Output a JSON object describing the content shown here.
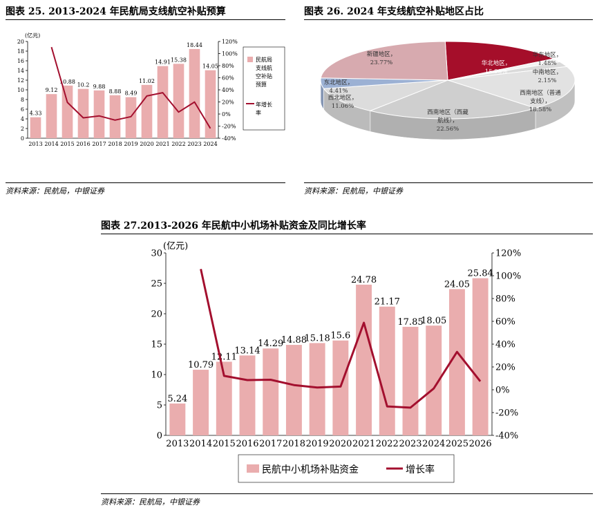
{
  "charts": {
    "fig25": {
      "title": "图表 25. 2013-2024 年民航局支线航空补贴预算",
      "source": "资料来源：民航局，中银证券"
    },
    "fig26": {
      "title": "图表 26. 2024 年支线航空补贴地区占比",
      "source": "资料来源：民航局，中银证券"
    },
    "fig27": {
      "title": "图表 27.2013-2026 年民航中小机场补贴资金及同比增长率",
      "source": "资料来源：民航局，中银证券"
    }
  },
  "chart_data": [
    {
      "type": "bar",
      "title": "图表 25. 2013-2024 年民航局支线航空补贴预算",
      "ylabel": "(亿元)",
      "categories": [
        "2013",
        "2014",
        "2015",
        "2016",
        "2017",
        "2018",
        "2019",
        "2020",
        "2021",
        "2022",
        "2023",
        "2024"
      ],
      "series": [
        {
          "name": "民航局支线航空补贴预算",
          "type": "bar",
          "axis": "left",
          "color": "#eaadae",
          "values": [
            4.33,
            9.12,
            10.88,
            10.2,
            9.88,
            8.88,
            8.49,
            11.02,
            14.91,
            15.38,
            18.44,
            14.05
          ],
          "labels": [
            "4.33",
            "9.12",
            "10.88",
            "10.2",
            "9.88",
            "8.88",
            "8.49",
            "11.02",
            "14.91",
            "15.38",
            "18.44",
            "14.05"
          ]
        },
        {
          "name": "年增长率",
          "type": "line",
          "axis": "right",
          "color": "#a30f2e",
          "values": [
            null,
            110.6,
            19.3,
            -6.3,
            -3.1,
            -10.1,
            -4.4,
            29.8,
            35.3,
            3.2,
            19.9,
            -23.8
          ]
        }
      ],
      "ylim": [
        0,
        20
      ],
      "yticks": [
        "0",
        "2",
        "4",
        "6",
        "8",
        "10",
        "12",
        "14",
        "16",
        "18",
        "20"
      ],
      "y2lim": [
        -40,
        120
      ],
      "y2ticks": [
        "-40%",
        "-20%",
        "0%",
        "20%",
        "40%",
        "60%",
        "80%",
        "100%",
        "120%"
      ],
      "legend": [
        "民航局支线航空补贴预算",
        "年增长率"
      ],
      "legend_placement": "right",
      "grid": false
    },
    {
      "type": "pie",
      "style": "3d",
      "title": "图表 26. 2024 年支线航空补贴地区占比",
      "slices": [
        {
          "name": "华北地区",
          "value": 15.98,
          "color": "#a50e2a",
          "label": "华北地区，",
          "pct": "15.98%"
        },
        {
          "name": "华东地区",
          "value": 1.48,
          "color": "#f3f3f3",
          "label": "华东地区，",
          "pct": "1.48%"
        },
        {
          "name": "中南地区",
          "value": 2.15,
          "color": "#dadada",
          "label": "中南地区，",
          "pct": "2.15%"
        },
        {
          "name": "西南地区（普通支线）",
          "value": 18.58,
          "color": "#e2e2e2",
          "label": "西南地区（普通支线），",
          "pct": "18.58%"
        },
        {
          "name": "西南地区（西藏航线）",
          "value": 22.56,
          "color": "#cfcfcf",
          "label": "西南地区（西藏航线），",
          "pct": "22.56%"
        },
        {
          "name": "西北地区",
          "value": 11.06,
          "color": "#dcdcdc",
          "label": "西北地区，",
          "pct": "11.06%"
        },
        {
          "name": "东北地区",
          "value": 4.41,
          "color": "#9cb1d4",
          "label": "东北地区，",
          "pct": "4.41%"
        },
        {
          "name": "新疆地区",
          "value": 23.77,
          "color": "#d7aaaf",
          "label": "新疆地区，",
          "pct": "23.77%"
        }
      ]
    },
    {
      "type": "bar",
      "title": "图表 27.2013-2026 年民航中小机场补贴资金及同比增长率",
      "ylabel": "(亿元)",
      "categories": [
        "2013",
        "2014",
        "2015",
        "2016",
        "2017",
        "2018",
        "2019",
        "2020",
        "2021",
        "2022",
        "2023",
        "2024",
        "2025",
        "2026"
      ],
      "series": [
        {
          "name": "民航中小机场补贴资金",
          "type": "bar",
          "axis": "left",
          "color": "#eaadae",
          "values": [
            5.24,
            10.79,
            12.11,
            13.14,
            14.29,
            14.88,
            15.18,
            15.6,
            24.78,
            21.17,
            17.85,
            18.05,
            24.05,
            25.84
          ],
          "labels": [
            "5.24",
            "10.79",
            "12.11",
            "13.14",
            "14.29",
            "14.88",
            "15.18",
            "15.6",
            "24.78",
            "21.17",
            "17.85",
            "18.05",
            "24.05",
            "25.84"
          ]
        },
        {
          "name": "增长率",
          "type": "line",
          "axis": "right",
          "color": "#a30f2e",
          "values": [
            null,
            105.9,
            12.2,
            8.5,
            8.8,
            4.1,
            2.0,
            2.8,
            58.8,
            -14.6,
            -15.7,
            1.1,
            33.2,
            7.4
          ]
        }
      ],
      "ylim": [
        0,
        30
      ],
      "yticks": [
        "0",
        "5",
        "10",
        "15",
        "20",
        "25",
        "30"
      ],
      "y2lim": [
        -40,
        120
      ],
      "y2ticks": [
        "-40%",
        "-20%",
        "0%",
        "20%",
        "40%",
        "60%",
        "80%",
        "100%",
        "120%"
      ],
      "legend": [
        "民航中小机场补贴资金",
        "增长率"
      ],
      "legend_placement": "bottom",
      "grid": false
    }
  ]
}
